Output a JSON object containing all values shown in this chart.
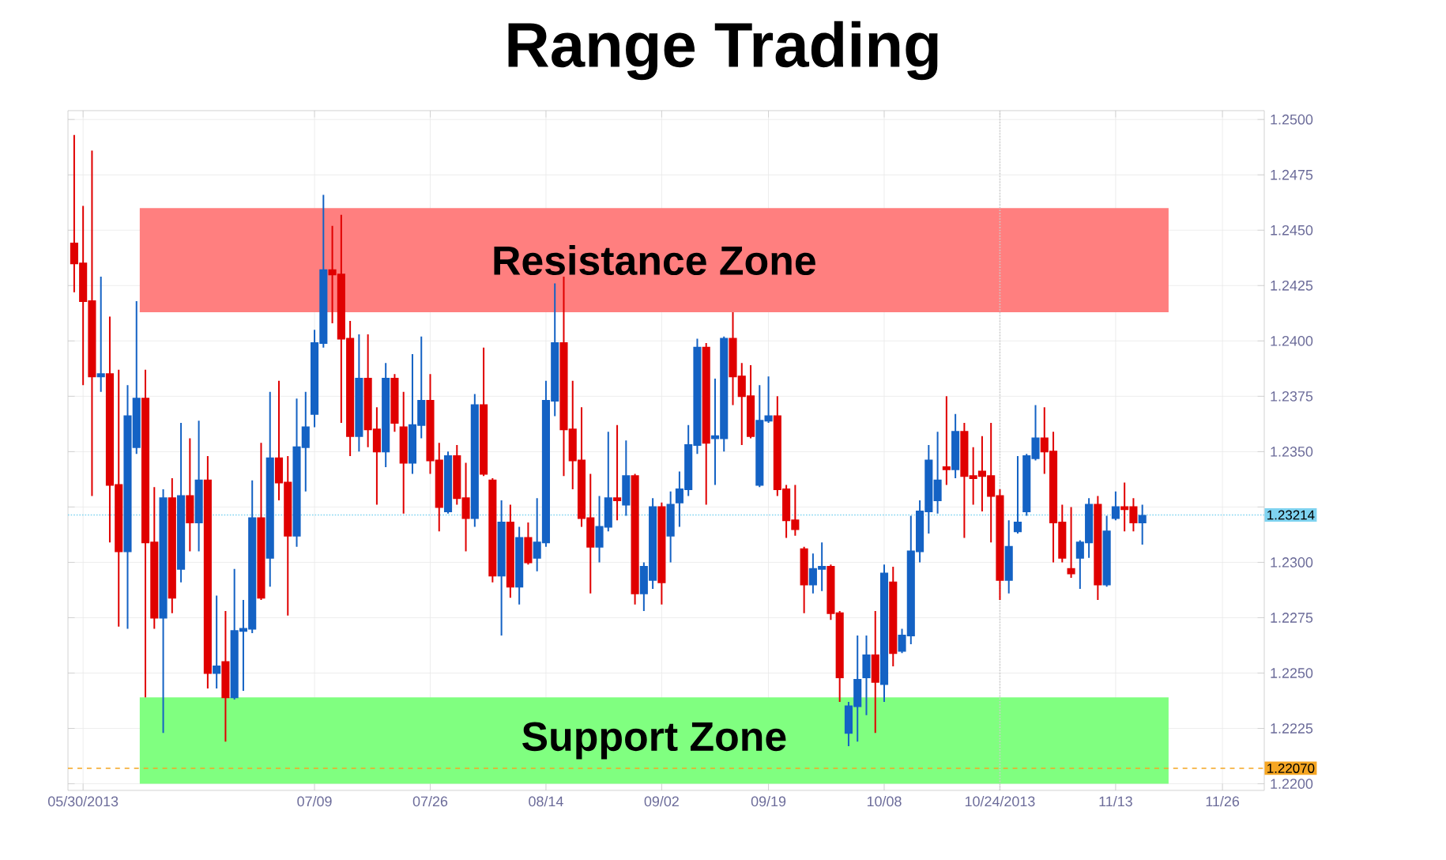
{
  "chart_data": {
    "type": "candlestick",
    "title": "Range Trading",
    "categories": [
      null,
      "05/30/2013",
      null,
      null,
      null,
      null,
      null,
      null,
      null,
      null,
      null,
      null,
      null,
      null,
      null,
      null,
      null,
      null,
      null,
      null,
      null,
      null,
      null,
      null,
      null,
      null,
      null,
      "07/09",
      null,
      null,
      null,
      null,
      null,
      null,
      null,
      null,
      null,
      null,
      null,
      null,
      "07/26",
      null,
      null,
      null,
      null,
      null,
      null,
      null,
      null,
      null,
      null,
      null,
      null,
      "08/14",
      null,
      null,
      null,
      null,
      null,
      null,
      null,
      null,
      null,
      null,
      null,
      null,
      "09/02",
      null,
      null,
      null,
      null,
      null,
      null,
      null,
      null,
      null,
      null,
      null,
      "09/19",
      null,
      null,
      null,
      null,
      null,
      null,
      null,
      null,
      null,
      null,
      null,
      null,
      "10/08",
      null,
      null,
      null,
      null,
      null,
      null,
      null,
      null,
      null,
      null,
      null,
      null,
      "10/24/2013",
      null,
      null,
      null,
      null,
      null,
      null,
      null,
      null,
      null,
      null,
      null,
      null,
      "11/13",
      null,
      null,
      null,
      null,
      null,
      null,
      null,
      null,
      null,
      null,
      null,
      "11/26"
    ],
    "ohlc": [
      [
        1.2444,
        1.2493,
        1.2422,
        1.2435
      ],
      [
        1.2435,
        1.2461,
        1.238,
        1.2418
      ],
      [
        1.2418,
        1.2486,
        1.233,
        1.2384
      ],
      [
        1.2384,
        1.2429,
        1.2377,
        1.2385
      ],
      [
        1.2385,
        1.2411,
        1.2309,
        1.2335
      ],
      [
        1.2335,
        1.2387,
        1.2271,
        1.2305
      ],
      [
        1.2305,
        1.238,
        1.227,
        1.2366
      ],
      [
        1.2352,
        1.2418,
        1.2349,
        1.2374
      ],
      [
        1.2374,
        1.2387,
        1.2239,
        1.2309
      ],
      [
        1.2309,
        1.2334,
        1.227,
        1.2275
      ],
      [
        1.2275,
        1.2333,
        1.2223,
        1.2329
      ],
      [
        1.2329,
        1.2338,
        1.2277,
        1.2284
      ],
      [
        1.2297,
        1.2363,
        1.2291,
        1.233
      ],
      [
        1.233,
        1.2356,
        1.2305,
        1.2318
      ],
      [
        1.2318,
        1.2364,
        1.2305,
        1.2337
      ],
      [
        1.2337,
        1.2348,
        1.2243,
        1.225
      ],
      [
        1.225,
        1.2285,
        1.2243,
        1.2253
      ],
      [
        1.2255,
        1.2278,
        1.2219,
        1.2239
      ],
      [
        1.2239,
        1.2297,
        1.2238,
        1.2269
      ],
      [
        1.2269,
        1.2283,
        1.2242,
        1.227
      ],
      [
        1.227,
        1.2337,
        1.2268,
        1.232
      ],
      [
        1.232,
        1.2354,
        1.2283,
        1.2284
      ],
      [
        1.2302,
        1.2377,
        1.2289,
        1.2347
      ],
      [
        1.2347,
        1.2382,
        1.2328,
        1.2336
      ],
      [
        1.2336,
        1.2348,
        1.2276,
        1.2312
      ],
      [
        1.2312,
        1.2374,
        1.2307,
        1.2352
      ],
      [
        1.2352,
        1.2377,
        1.2332,
        1.2361
      ],
      [
        1.2367,
        1.2405,
        1.2361,
        1.2399
      ],
      [
        1.2399,
        1.2466,
        1.2397,
        1.2432
      ],
      [
        1.2432,
        1.2452,
        1.2408,
        1.243
      ],
      [
        1.243,
        1.2457,
        1.2363,
        1.2401
      ],
      [
        1.2401,
        1.2409,
        1.2348,
        1.2357
      ],
      [
        1.2357,
        1.2403,
        1.235,
        1.2383
      ],
      [
        1.2383,
        1.2403,
        1.2352,
        1.236
      ],
      [
        1.236,
        1.237,
        1.2326,
        1.235
      ],
      [
        1.235,
        1.239,
        1.2343,
        1.2383
      ],
      [
        1.2383,
        1.2385,
        1.2359,
        1.2363
      ],
      [
        1.2361,
        1.2377,
        1.2322,
        1.2345
      ],
      [
        1.2345,
        1.2394,
        1.234,
        1.2362
      ],
      [
        1.2362,
        1.2402,
        1.2356,
        1.2373
      ],
      [
        1.2373,
        1.2385,
        1.234,
        1.2346
      ],
      [
        1.2346,
        1.2354,
        1.2314,
        1.2325
      ],
      [
        1.2323,
        1.235,
        1.2322,
        1.2348
      ],
      [
        1.2348,
        1.2353,
        1.2326,
        1.2329
      ],
      [
        1.2329,
        1.2345,
        1.2305,
        1.232
      ],
      [
        1.232,
        1.2376,
        1.2316,
        1.2371
      ],
      [
        1.2371,
        1.2397,
        1.2339,
        1.234
      ],
      [
        1.2337,
        1.2338,
        1.2291,
        1.2294
      ],
      [
        1.2294,
        1.2328,
        1.2267,
        1.2318
      ],
      [
        1.2318,
        1.2326,
        1.2284,
        1.2289
      ],
      [
        1.2289,
        1.2316,
        1.2281,
        1.2311
      ],
      [
        1.2311,
        1.2318,
        1.2299,
        1.23
      ],
      [
        1.2302,
        1.2329,
        1.2296,
        1.2309
      ],
      [
        1.2309,
        1.2382,
        1.2307,
        1.2373
      ],
      [
        1.2373,
        1.2426,
        1.2366,
        1.2399
      ],
      [
        1.2399,
        1.2429,
        1.2339,
        1.236
      ],
      [
        1.236,
        1.2382,
        1.2333,
        1.2346
      ],
      [
        1.2346,
        1.237,
        1.2316,
        1.232
      ],
      [
        1.232,
        1.234,
        1.2286,
        1.2307
      ],
      [
        1.2307,
        1.233,
        1.23,
        1.2316
      ],
      [
        1.2316,
        1.2359,
        1.2314,
        1.2329
      ],
      [
        1.2329,
        1.2362,
        1.2319,
        1.2328
      ],
      [
        1.2326,
        1.2355,
        1.2321,
        1.2339
      ],
      [
        1.2339,
        1.234,
        1.2281,
        1.2286
      ],
      [
        1.2286,
        1.23,
        1.2278,
        1.2298
      ],
      [
        1.2292,
        1.2329,
        1.2288,
        1.2325
      ],
      [
        1.2325,
        1.2327,
        1.2281,
        1.2291
      ],
      [
        1.2312,
        1.2332,
        1.23,
        1.2326
      ],
      [
        1.2327,
        1.2341,
        1.2316,
        1.2333
      ],
      [
        1.2333,
        1.2362,
        1.233,
        1.2353
      ],
      [
        1.2353,
        1.2401,
        1.2349,
        1.2397
      ],
      [
        1.2397,
        1.2399,
        1.2326,
        1.2354
      ],
      [
        1.2356,
        1.2383,
        1.2335,
        1.2357
      ],
      [
        1.2356,
        1.2402,
        1.235,
        1.2401
      ],
      [
        1.2401,
        1.2413,
        1.2371,
        1.2384
      ],
      [
        1.2384,
        1.239,
        1.2353,
        1.2375
      ],
      [
        1.2375,
        1.2389,
        1.2356,
        1.2357
      ],
      [
        1.2335,
        1.238,
        1.2334,
        1.2364
      ],
      [
        1.2364,
        1.2384,
        1.2363,
        1.2366
      ],
      [
        1.2366,
        1.2375,
        1.233,
        1.2333
      ],
      [
        1.2333,
        1.2335,
        1.2311,
        1.2319
      ],
      [
        1.2319,
        1.2335,
        1.2312,
        1.2315
      ],
      [
        1.2306,
        1.2307,
        1.2277,
        1.229
      ],
      [
        1.229,
        1.2304,
        1.2286,
        1.2297
      ],
      [
        1.2297,
        1.2309,
        1.2287,
        1.2298
      ],
      [
        1.2298,
        1.2299,
        1.2274,
        1.2277
      ],
      [
        1.2277,
        1.2278,
        1.2237,
        1.2248
      ],
      [
        1.2223,
        1.2237,
        1.2217,
        1.2235
      ],
      [
        1.2235,
        1.2267,
        1.2219,
        1.2247
      ],
      [
        1.2248,
        1.2267,
        1.2231,
        1.2258
      ],
      [
        1.2258,
        1.2278,
        1.2223,
        1.2246
      ],
      [
        1.2245,
        1.2299,
        1.2237,
        1.2295
      ],
      [
        1.2291,
        1.2298,
        1.2253,
        1.2259
      ],
      [
        1.226,
        1.227,
        1.2259,
        1.2267
      ],
      [
        1.2267,
        1.2321,
        1.2263,
        1.2305
      ],
      [
        1.2305,
        1.2328,
        1.23,
        1.2323
      ],
      [
        1.2323,
        1.2353,
        1.2313,
        1.2346
      ],
      [
        1.2328,
        1.2359,
        1.2322,
        1.2337
      ],
      [
        1.2343,
        1.2375,
        1.2335,
        1.2342
      ],
      [
        1.2342,
        1.2367,
        1.2338,
        1.2359
      ],
      [
        1.2359,
        1.2363,
        1.2311,
        1.2339
      ],
      [
        1.2339,
        1.2352,
        1.2326,
        1.2338
      ],
      [
        1.2341,
        1.2357,
        1.2323,
        1.2339
      ],
      [
        1.2339,
        1.2363,
        1.2309,
        1.233
      ],
      [
        1.233,
        1.2333,
        1.2283,
        1.2292
      ],
      [
        1.2292,
        1.2319,
        1.2286,
        1.2307
      ],
      [
        1.2314,
        1.2348,
        1.2313,
        1.2318
      ],
      [
        1.2323,
        1.2349,
        1.2321,
        1.2348
      ],
      [
        1.2347,
        1.2371,
        1.2346,
        1.2356
      ],
      [
        1.2356,
        1.237,
        1.234,
        1.235
      ],
      [
        1.235,
        1.2359,
        1.23,
        1.2318
      ],
      [
        1.2318,
        1.2326,
        1.23,
        1.2302
      ],
      [
        1.2297,
        1.2325,
        1.2293,
        1.2295
      ],
      [
        1.2302,
        1.231,
        1.2288,
        1.2309
      ],
      [
        1.2309,
        1.2329,
        1.2302,
        1.2326
      ],
      [
        1.2326,
        1.233,
        1.2283,
        1.229
      ],
      [
        1.229,
        1.2321,
        1.2289,
        1.2314
      ],
      [
        1.232,
        1.2332,
        1.2319,
        1.2325
      ],
      [
        1.2325,
        1.2336,
        1.2314,
        1.2324
      ],
      [
        1.2325,
        1.2329,
        1.2314,
        1.2318
      ],
      [
        1.2318,
        1.2326,
        1.2308,
        1.2321
      ],
      null,
      null,
      null,
      null,
      null,
      null,
      null,
      null,
      null
    ],
    "ylim": [
      1.2197,
      1.2504
    ],
    "yticks": [
      {
        "value": 1.22,
        "label": "1.2200"
      },
      {
        "value": 1.2225,
        "label": "1.2225"
      },
      {
        "value": 1.225,
        "label": "1.2250"
      },
      {
        "value": 1.2275,
        "label": "1.2275"
      },
      {
        "value": 1.23,
        "label": "1.2300"
      },
      {
        "value": 1.2325,
        "label": null
      },
      {
        "value": 1.235,
        "label": "1.2350"
      },
      {
        "value": 1.2375,
        "label": "1.2375"
      },
      {
        "value": 1.24,
        "label": "1.2400"
      },
      {
        "value": 1.2425,
        "label": "1.2425"
      },
      {
        "value": 1.245,
        "label": "1.2450"
      },
      {
        "value": 1.2475,
        "label": "1.2475"
      },
      {
        "value": 1.25,
        "label": "1.2500"
      }
    ],
    "grid": true,
    "bands": [
      {
        "axis": "y",
        "from": 1.2413,
        "to": 1.246,
        "label": "Resistance Zone",
        "color": "#ff7f7f"
      },
      {
        "axis": "y",
        "from": 1.22,
        "to": 1.2239,
        "label": "Support Zone",
        "color": "#80ff80"
      }
    ],
    "ref_lines": [
      {
        "axis": "y",
        "value": 1.2207,
        "label": "1.22070",
        "color": "#f5a623",
        "line_style": "dashed"
      },
      {
        "axis": "y",
        "value": 1.23214,
        "label": "1.23214",
        "color": "#7fd3f0",
        "line_style": "dotted"
      },
      {
        "axis": "x",
        "value": "10/24/2013",
        "color": "#cccccc",
        "line_style": "dotted"
      }
    ]
  }
}
